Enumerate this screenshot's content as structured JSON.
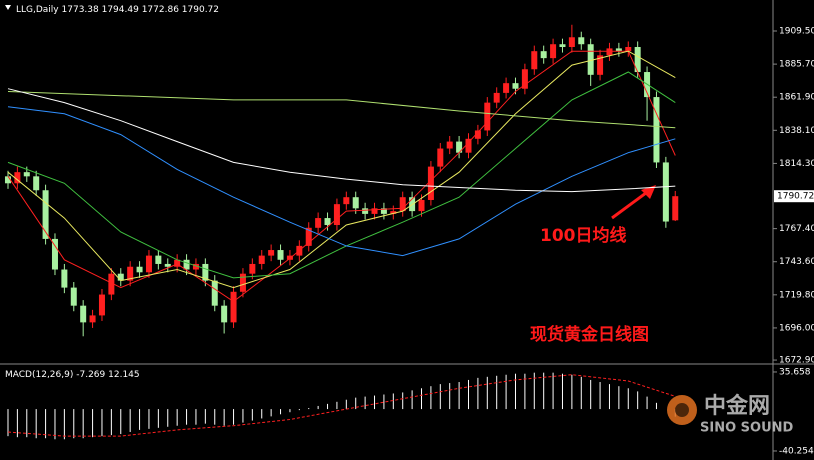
{
  "chart_data": [
    {
      "type": "candlestick",
      "title": "LLG,Daily",
      "xlim": [
        -0.85,
        81.4
      ],
      "ylim": [
        1671.5,
        1931.8
      ],
      "yticks": [
        {
          "value": 1909.5,
          "label": "1909.50"
        },
        {
          "value": 1885.7,
          "label": "1885.70"
        },
        {
          "value": 1861.9,
          "label": "1861.90"
        },
        {
          "value": 1838.1,
          "label": "1838.10"
        },
        {
          "value": 1814.3,
          "label": "1814.30"
        },
        {
          "value": 1767.4,
          "label": "1767.40"
        },
        {
          "value": 1743.6,
          "label": "1743.60"
        },
        {
          "value": 1719.8,
          "label": "1719.80"
        },
        {
          "value": 1696,
          "label": "1696.00"
        },
        {
          "value": 1672.9,
          "label": "1672.90"
        }
      ],
      "up_color": "#ff2020",
      "down_color": "#a8f0a0",
      "candles": {
        "open": [
          1805,
          1800,
          1808,
          1805,
          1795,
          1760,
          1738,
          1725,
          1712,
          1700,
          1705,
          1720,
          1735,
          1730,
          1740,
          1736,
          1748,
          1742,
          1740,
          1745,
          1738,
          1742,
          1730,
          1712,
          1700,
          1722,
          1735,
          1742,
          1748,
          1752,
          1745,
          1748,
          1755,
          1768,
          1775,
          1770,
          1785,
          1790,
          1782,
          1778,
          1782,
          1778,
          1780,
          1790,
          1780,
          1788,
          1812,
          1825,
          1830,
          1822,
          1832,
          1838,
          1858,
          1865,
          1872,
          1868,
          1882,
          1895,
          1890,
          1900,
          1898,
          1905,
          1900,
          1878,
          1892,
          1897,
          1895,
          1898,
          1880,
          1862,
          1815,
          1773.38
        ],
        "high": [
          1809,
          1812,
          1812,
          1809,
          1799,
          1764,
          1742,
          1729,
          1716,
          1709,
          1724,
          1739,
          1739,
          1744,
          1744,
          1752,
          1752,
          1746,
          1749,
          1749,
          1746,
          1746,
          1734,
          1716,
          1726,
          1739,
          1746,
          1752,
          1756,
          1756,
          1752,
          1759,
          1772,
          1779,
          1779,
          1789,
          1794,
          1794,
          1786,
          1786,
          1786,
          1784,
          1794,
          1794,
          1792,
          1816,
          1829,
          1834,
          1834,
          1836,
          1842,
          1862,
          1869,
          1876,
          1876,
          1886,
          1899,
          1899,
          1904,
          1904,
          1914,
          1909,
          1904,
          1896,
          1901,
          1901,
          1902,
          1902,
          1884,
          1866,
          1819,
          1794.49
        ],
        "low": [
          1796,
          1796,
          1801,
          1791,
          1756,
          1734,
          1721,
          1708,
          1690,
          1696,
          1701,
          1716,
          1726,
          1726,
          1732,
          1732,
          1738,
          1736,
          1736,
          1734,
          1734,
          1726,
          1708,
          1692,
          1696,
          1718,
          1731,
          1738,
          1744,
          1741,
          1741,
          1744,
          1751,
          1764,
          1766,
          1766,
          1781,
          1778,
          1774,
          1774,
          1774,
          1774,
          1776,
          1776,
          1776,
          1784,
          1808,
          1821,
          1818,
          1818,
          1828,
          1834,
          1854,
          1861,
          1864,
          1864,
          1878,
          1886,
          1886,
          1894,
          1894,
          1896,
          1870,
          1874,
          1888,
          1891,
          1891,
          1876,
          1845,
          1811,
          1768,
          1772.86
        ],
        "close": [
          1800,
          1808,
          1805,
          1795,
          1760,
          1738,
          1725,
          1712,
          1700,
          1705,
          1720,
          1735,
          1730,
          1740,
          1736,
          1748,
          1742,
          1740,
          1745,
          1738,
          1742,
          1730,
          1712,
          1700,
          1722,
          1735,
          1742,
          1748,
          1752,
          1745,
          1748,
          1755,
          1768,
          1775,
          1770,
          1785,
          1790,
          1782,
          1778,
          1782,
          1778,
          1780,
          1790,
          1780,
          1788,
          1812,
          1825,
          1830,
          1822,
          1832,
          1838,
          1858,
          1865,
          1872,
          1868,
          1882,
          1895,
          1890,
          1900,
          1898,
          1905,
          1900,
          1878,
          1892,
          1897,
          1895,
          1898,
          1880,
          1862,
          1815,
          1772.5,
          1790.72
        ]
      },
      "series": [
        {
          "color": "#ff2020",
          "x": [
            0,
            6,
            12,
            18,
            24,
            30,
            36,
            42,
            48,
            54,
            60,
            66,
            71
          ],
          "values": [
            1805,
            1745,
            1725,
            1742,
            1715,
            1746,
            1780,
            1782,
            1822,
            1866,
            1895,
            1895,
            1820
          ]
        },
        {
          "color": "#e8e860",
          "x": [
            0,
            6,
            12,
            18,
            24,
            30,
            36,
            42,
            48,
            54,
            60,
            66,
            71
          ],
          "values": [
            1808,
            1775,
            1730,
            1738,
            1725,
            1738,
            1770,
            1780,
            1808,
            1850,
            1885,
            1895,
            1876
          ]
        },
        {
          "color": "#40c040",
          "x": [
            0,
            6,
            12,
            18,
            24,
            30,
            36,
            42,
            48,
            54,
            60,
            66,
            71
          ],
          "values": [
            1815,
            1800,
            1765,
            1745,
            1732,
            1735,
            1755,
            1772,
            1790,
            1825,
            1860,
            1880,
            1858
          ]
        },
        {
          "color": "#3090ff",
          "x": [
            0,
            6,
            12,
            18,
            24,
            30,
            36,
            42,
            48,
            54,
            60,
            66,
            71
          ],
          "values": [
            1855,
            1850,
            1835,
            1810,
            1790,
            1772,
            1755,
            1748,
            1760,
            1785,
            1805,
            1822,
            1832
          ]
        },
        {
          "color": "#b0e070",
          "x": [
            0,
            12,
            24,
            36,
            48,
            60,
            71
          ],
          "values": [
            1866,
            1863,
            1860,
            1860,
            1852,
            1845,
            1840
          ]
        },
        {
          "color": "#ffffff",
          "x": [
            0,
            6,
            12,
            18,
            24,
            30,
            36,
            42,
            48,
            54,
            60,
            66,
            71
          ],
          "values": [
            1868,
            1858,
            1845,
            1830,
            1815,
            1808,
            1803,
            1799,
            1797,
            1795,
            1794,
            1796,
            1798
          ]
        }
      ],
      "annotations": [
        "100日均线",
        "现货黄金日线图"
      ]
    },
    {
      "type": "macd",
      "title": "MACD(12,26,9)",
      "xlim": [
        -0.85,
        81.4
      ],
      "ylim": [
        -47.0,
        41.4
      ],
      "yticks": [
        35.658,
        -40.254
      ],
      "histogram_color": "#ffffff",
      "signal_color": "#ff2020",
      "values": [
        -26,
        -27,
        -27,
        -28,
        -28,
        -29,
        -29,
        -28,
        -28,
        -27,
        -26,
        -25,
        -24,
        -22,
        -20,
        -19,
        -18,
        -17,
        -16,
        -15,
        -15,
        -14,
        -15,
        -16,
        -15,
        -13,
        -11,
        -9,
        -7,
        -5,
        -3,
        -1,
        1,
        3,
        5,
        7,
        9,
        11,
        12,
        13,
        14,
        15,
        16,
        18,
        20,
        22,
        24,
        25,
        26,
        28,
        30,
        31,
        32,
        33,
        34,
        34,
        35,
        35,
        35,
        34,
        33,
        31,
        28,
        26,
        24,
        22,
        20,
        17,
        12,
        6,
        0,
        -7.269
      ],
      "signal": {
        "x": [
          0,
          6,
          12,
          18,
          24,
          30,
          36,
          42,
          48,
          54,
          60,
          66,
          71
        ],
        "values": [
          -22,
          -26,
          -26,
          -20,
          -16,
          -10,
          0,
          10,
          20,
          28,
          33,
          27,
          12.145
        ]
      }
    }
  ],
  "watermark": {
    "title": "中金网",
    "subtitle": "SINO SOUND"
  }
}
